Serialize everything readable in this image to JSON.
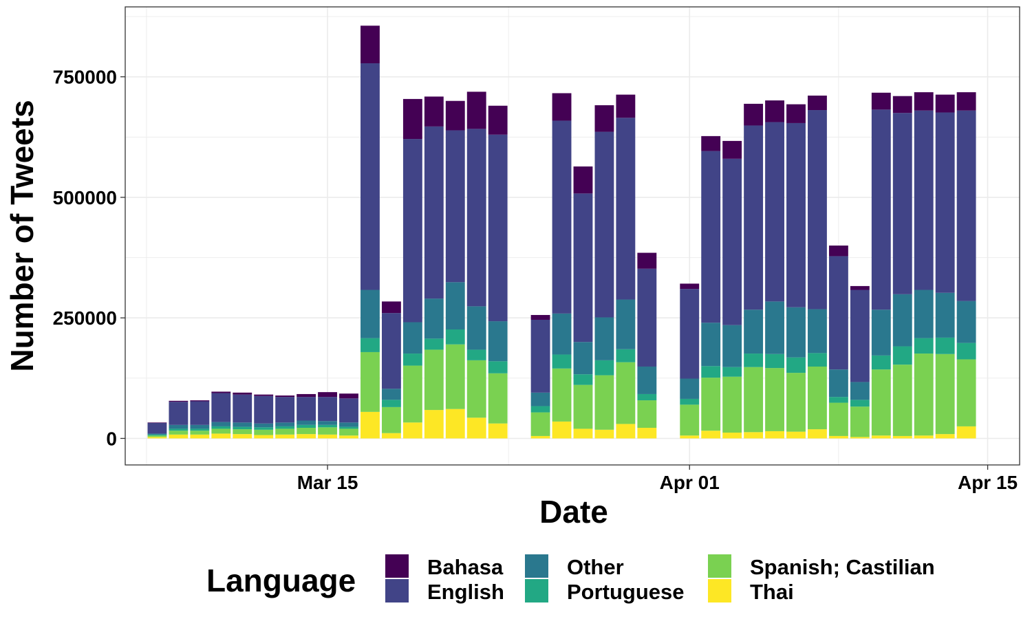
{
  "chart_data": {
    "type": "bar",
    "stacked": true,
    "xlabel": "Date",
    "ylabel": "Number of Tweets",
    "ylim": [
      -55000,
      895000
    ],
    "y_ticks": [
      0,
      250000,
      500000,
      750000
    ],
    "x_ticks": [
      {
        "date": "2020-03-15",
        "label": "Mar 15"
      },
      {
        "date": "2020-04-01",
        "label": "Apr 01"
      },
      {
        "date": "2020-04-15",
        "label": "Apr 15"
      }
    ],
    "xlim": [
      "2020-03-05T12:00",
      "2020-04-16T12:00"
    ],
    "grid": true,
    "legend": {
      "title": "Language",
      "position": "bottom"
    },
    "series_order_bottom_to_top": [
      "Thai",
      "Spanish; Castilian",
      "Portuguese",
      "Other",
      "English",
      "Bahasa"
    ],
    "series": [
      {
        "name": "Bahasa",
        "color": "#440154"
      },
      {
        "name": "English",
        "color": "#414487"
      },
      {
        "name": "Other",
        "color": "#2A788E"
      },
      {
        "name": "Portuguese",
        "color": "#22A884"
      },
      {
        "name": "Spanish; Castilian",
        "color": "#7AD151"
      },
      {
        "name": "Thai",
        "color": "#FDE725"
      }
    ],
    "data": [
      {
        "date": "2020-03-07",
        "Thai": 3000,
        "Spanish; Castilian": 3000,
        "Portuguese": 2000,
        "Other": 2000,
        "English": 22000,
        "Bahasa": 1000
      },
      {
        "date": "2020-03-08",
        "Thai": 8000,
        "Spanish; Castilian": 8000,
        "Portuguese": 4000,
        "Other": 8000,
        "English": 48000,
        "Bahasa": 2000
      },
      {
        "date": "2020-03-09",
        "Thai": 8000,
        "Spanish; Castilian": 8000,
        "Portuguese": 4000,
        "Other": 8000,
        "English": 49000,
        "Bahasa": 2000
      },
      {
        "date": "2020-03-10",
        "Thai": 10000,
        "Spanish; Castilian": 10000,
        "Portuguese": 5000,
        "Other": 9000,
        "English": 60000,
        "Bahasa": 3000
      },
      {
        "date": "2020-03-11",
        "Thai": 9000,
        "Spanish; Castilian": 10000,
        "Portuguese": 5000,
        "Other": 9000,
        "English": 58000,
        "Bahasa": 4000
      },
      {
        "date": "2020-03-12",
        "Thai": 7000,
        "Spanish; Castilian": 11000,
        "Portuguese": 5000,
        "Other": 8000,
        "English": 57000,
        "Bahasa": 3000
      },
      {
        "date": "2020-03-13",
        "Thai": 8000,
        "Spanish; Castilian": 12000,
        "Portuguese": 5000,
        "Other": 8000,
        "English": 53000,
        "Bahasa": 3000
      },
      {
        "date": "2020-03-14",
        "Thai": 9000,
        "Spanish; Castilian": 13000,
        "Portuguese": 6000,
        "Other": 9000,
        "English": 49000,
        "Bahasa": 6000
      },
      {
        "date": "2020-03-15",
        "Thai": 8000,
        "Spanish; Castilian": 15000,
        "Portuguese": 5000,
        "Other": 8000,
        "English": 50000,
        "Bahasa": 10000
      },
      {
        "date": "2020-03-16",
        "Thai": 6000,
        "Spanish; Castilian": 14000,
        "Portuguese": 4000,
        "Other": 9000,
        "English": 50000,
        "Bahasa": 10000
      },
      {
        "date": "2020-03-17",
        "Thai": 55000,
        "Spanish; Castilian": 124000,
        "Portuguese": 29000,
        "Other": 100000,
        "English": 470000,
        "Bahasa": 78000
      },
      {
        "date": "2020-03-18",
        "Thai": 11000,
        "Spanish; Castilian": 54000,
        "Portuguese": 15000,
        "Other": 23000,
        "English": 157000,
        "Bahasa": 24000
      },
      {
        "date": "2020-03-19",
        "Thai": 33000,
        "Spanish; Castilian": 118000,
        "Portuguese": 25000,
        "Other": 65000,
        "English": 380000,
        "Bahasa": 83000
      },
      {
        "date": "2020-03-20",
        "Thai": 59000,
        "Spanish; Castilian": 125000,
        "Portuguese": 23000,
        "Other": 83000,
        "English": 357000,
        "Bahasa": 62000
      },
      {
        "date": "2020-03-21",
        "Thai": 61000,
        "Spanish; Castilian": 134000,
        "Portuguese": 31000,
        "Other": 98000,
        "English": 315000,
        "Bahasa": 61000
      },
      {
        "date": "2020-03-22",
        "Thai": 43000,
        "Spanish; Castilian": 119000,
        "Portuguese": 22000,
        "Other": 90000,
        "English": 368000,
        "Bahasa": 77000
      },
      {
        "date": "2020-03-23",
        "Thai": 31000,
        "Spanish; Castilian": 104000,
        "Portuguese": 25000,
        "Other": 83000,
        "English": 387000,
        "Bahasa": 60000
      },
      {
        "date": "2020-03-25",
        "Thai": 5000,
        "Spanish; Castilian": 49000,
        "Portuguese": 13000,
        "Other": 28000,
        "English": 151000,
        "Bahasa": 10000
      },
      {
        "date": "2020-03-26",
        "Thai": 35000,
        "Spanish; Castilian": 110000,
        "Portuguese": 29000,
        "Other": 85000,
        "English": 400000,
        "Bahasa": 57000
      },
      {
        "date": "2020-03-27",
        "Thai": 20000,
        "Spanish; Castilian": 91000,
        "Portuguese": 22000,
        "Other": 67000,
        "English": 308000,
        "Bahasa": 56000
      },
      {
        "date": "2020-03-28",
        "Thai": 18000,
        "Spanish; Castilian": 113000,
        "Portuguese": 31000,
        "Other": 89000,
        "English": 385000,
        "Bahasa": 55000
      },
      {
        "date": "2020-03-29",
        "Thai": 30000,
        "Spanish; Castilian": 128000,
        "Portuguese": 27000,
        "Other": 103000,
        "English": 377000,
        "Bahasa": 48000
      },
      {
        "date": "2020-03-30",
        "Thai": 22000,
        "Spanish; Castilian": 57000,
        "Portuguese": 13000,
        "Other": 57000,
        "English": 203000,
        "Bahasa": 33000
      },
      {
        "date": "2020-04-01",
        "Thai": 6000,
        "Spanish; Castilian": 64000,
        "Portuguese": 12000,
        "Other": 42000,
        "English": 186000,
        "Bahasa": 11000
      },
      {
        "date": "2020-04-02",
        "Thai": 16000,
        "Spanish; Castilian": 110000,
        "Portuguese": 24000,
        "Other": 90000,
        "English": 356000,
        "Bahasa": 31000
      },
      {
        "date": "2020-04-03",
        "Thai": 12000,
        "Spanish; Castilian": 116000,
        "Portuguese": 20000,
        "Other": 87000,
        "English": 345000,
        "Bahasa": 37000
      },
      {
        "date": "2020-04-04",
        "Thai": 13000,
        "Spanish; Castilian": 135000,
        "Portuguese": 28000,
        "Other": 91000,
        "English": 382000,
        "Bahasa": 45000
      },
      {
        "date": "2020-04-05",
        "Thai": 15000,
        "Spanish; Castilian": 131000,
        "Portuguese": 29000,
        "Other": 109000,
        "English": 372000,
        "Bahasa": 45000
      },
      {
        "date": "2020-04-06",
        "Thai": 14000,
        "Spanish; Castilian": 122000,
        "Portuguese": 32000,
        "Other": 104000,
        "English": 382000,
        "Bahasa": 39000
      },
      {
        "date": "2020-04-07",
        "Thai": 19000,
        "Spanish; Castilian": 130000,
        "Portuguese": 28000,
        "Other": 91000,
        "English": 413000,
        "Bahasa": 30000
      },
      {
        "date": "2020-04-08",
        "Thai": 5000,
        "Spanish; Castilian": 69000,
        "Portuguese": 12000,
        "Other": 57000,
        "English": 235000,
        "Bahasa": 22000
      },
      {
        "date": "2020-04-09",
        "Thai": 3000,
        "Spanish; Castilian": 63000,
        "Portuguese": 14000,
        "Other": 37000,
        "English": 191000,
        "Bahasa": 8000
      },
      {
        "date": "2020-04-10",
        "Thai": 6000,
        "Spanish; Castilian": 137000,
        "Portuguese": 29000,
        "Other": 95000,
        "English": 415000,
        "Bahasa": 35000
      },
      {
        "date": "2020-04-11",
        "Thai": 5000,
        "Spanish; Castilian": 148000,
        "Portuguese": 38000,
        "Other": 108000,
        "English": 376000,
        "Bahasa": 35000
      },
      {
        "date": "2020-04-12",
        "Thai": 6000,
        "Spanish; Castilian": 170000,
        "Portuguese": 32000,
        "Other": 100000,
        "English": 372000,
        "Bahasa": 38000
      },
      {
        "date": "2020-04-13",
        "Thai": 9000,
        "Spanish; Castilian": 166000,
        "Portuguese": 34000,
        "Other": 93000,
        "English": 374000,
        "Bahasa": 37000
      },
      {
        "date": "2020-04-14",
        "Thai": 25000,
        "Spanish; Castilian": 139000,
        "Portuguese": 34000,
        "Other": 87000,
        "English": 395000,
        "Bahasa": 38000
      }
    ]
  }
}
